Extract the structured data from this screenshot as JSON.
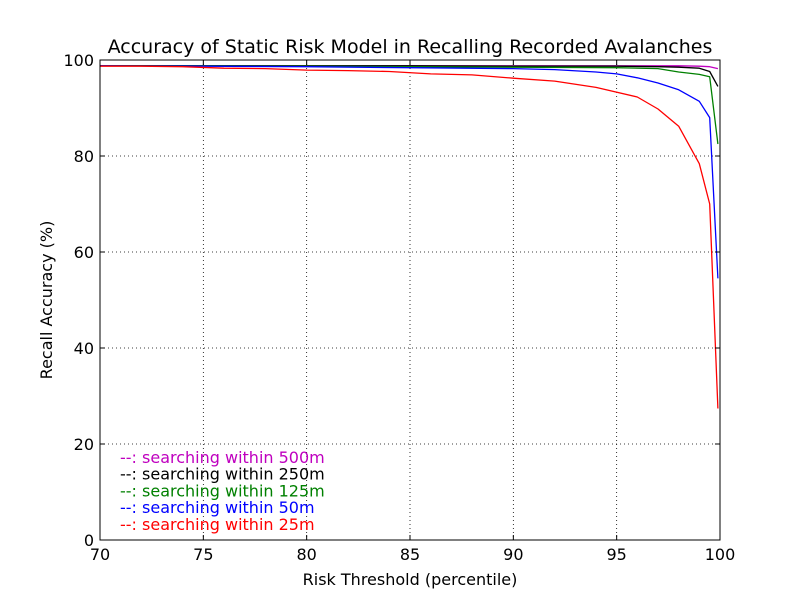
{
  "chart_data": {
    "type": "line",
    "title": "Accuracy of Static Risk Model in Recalling Recorded Avalanches",
    "xlabel": "Risk Threshold (percentile)",
    "ylabel": "Recall Accuracy (%)",
    "xlim": [
      70,
      100
    ],
    "ylim": [
      0,
      100
    ],
    "xticks": [
      70,
      75,
      80,
      85,
      90,
      95,
      100
    ],
    "yticks": [
      0,
      20,
      40,
      60,
      80,
      100
    ],
    "grid": true,
    "legend_position": "bottom-left",
    "series": [
      {
        "name": "--: searching within 500m",
        "color": "#bf00bf",
        "x": [
          70,
          75,
          80,
          85,
          90,
          95,
          98,
          99,
          99.5,
          99.9
        ],
        "y": [
          98.8,
          98.8,
          98.8,
          98.8,
          98.8,
          98.8,
          98.8,
          98.7,
          98.6,
          98.2
        ]
      },
      {
        "name": "--: searching within 250m",
        "color": "#000000",
        "x": [
          70,
          75,
          80,
          85,
          90,
          95,
          97,
          98,
          99,
          99.5,
          99.9
        ],
        "y": [
          98.8,
          98.8,
          98.8,
          98.8,
          98.7,
          98.7,
          98.6,
          98.5,
          98.3,
          97.6,
          94.5
        ]
      },
      {
        "name": "--: searching within 125m",
        "color": "#008000",
        "x": [
          70,
          75,
          80,
          85,
          90,
          95,
          97,
          98,
          99,
          99.5,
          99.9
        ],
        "y": [
          98.8,
          98.8,
          98.7,
          98.6,
          98.5,
          98.4,
          98.2,
          97.5,
          97.0,
          96.5,
          82.5
        ]
      },
      {
        "name": "--: searching within 50m",
        "color": "#0000ff",
        "x": [
          70,
          75,
          80,
          85,
          90,
          92,
          94,
          95,
          96,
          97,
          98,
          99,
          99.5,
          99.9
        ],
        "y": [
          98.8,
          98.7,
          98.6,
          98.4,
          98.2,
          98.0,
          97.5,
          97.1,
          96.3,
          95.2,
          93.8,
          91.4,
          88.0,
          54.5
        ]
      },
      {
        "name": "--: searching within 25m",
        "color": "#ff0000",
        "x": [
          70,
          72,
          74,
          76,
          78,
          80,
          82,
          84,
          86,
          88,
          90,
          92,
          94,
          96,
          97,
          98,
          99,
          99.5,
          99.9
        ],
        "y": [
          98.7,
          98.7,
          98.6,
          98.3,
          98.2,
          97.9,
          97.8,
          97.6,
          97.1,
          96.9,
          96.2,
          95.6,
          94.3,
          92.3,
          89.8,
          86.2,
          78.4,
          70.0,
          27.4
        ]
      }
    ]
  }
}
